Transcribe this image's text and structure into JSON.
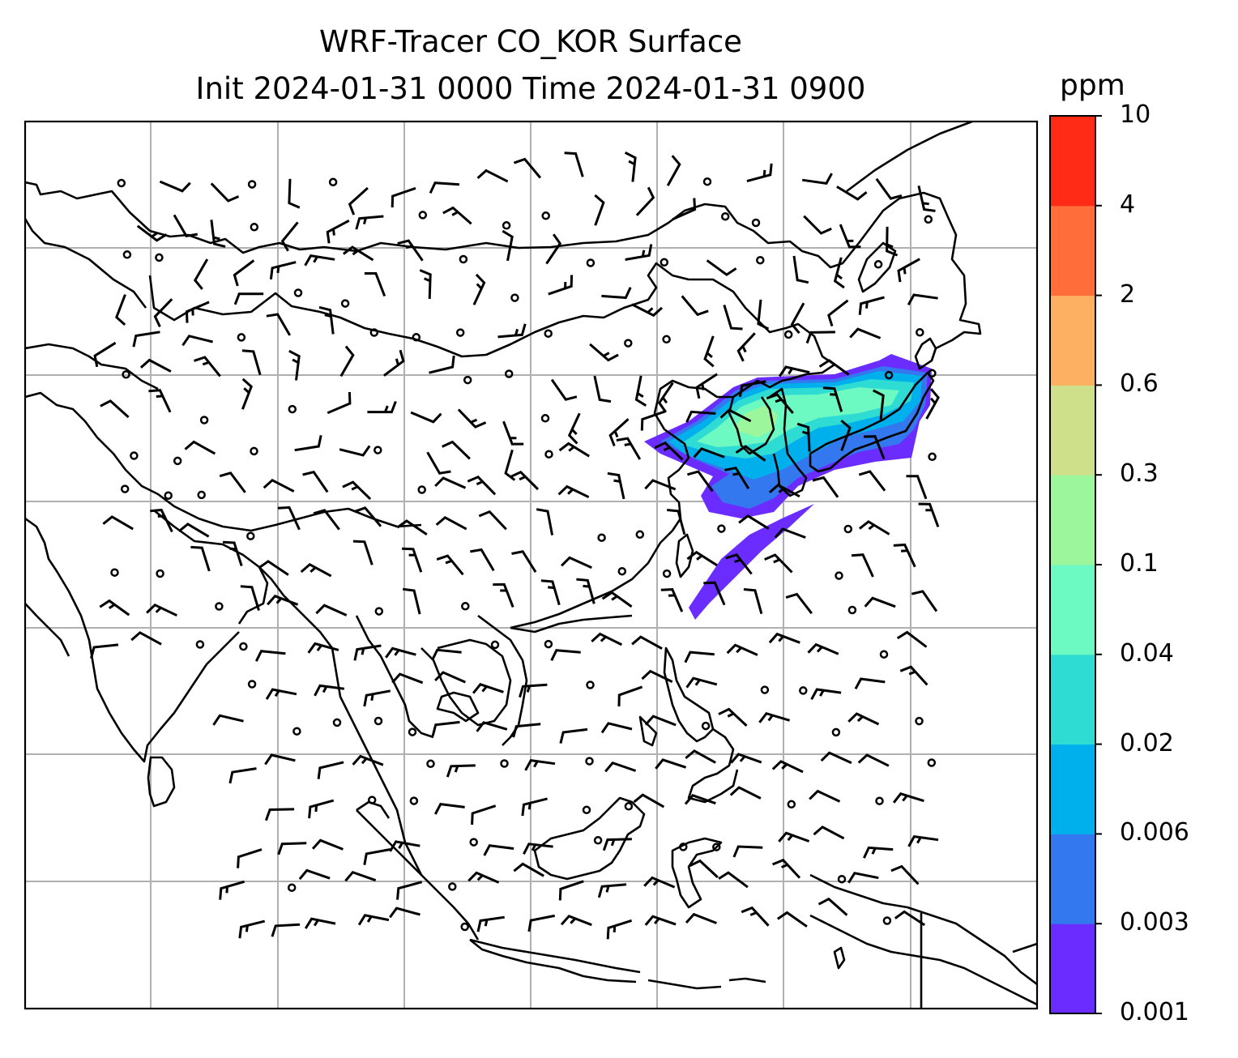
{
  "title": {
    "line1": "WRF-Tracer CO_KOR Surface",
    "line2": "Init 2024-01-31 0000 Time 2024-01-31 0900"
  },
  "colorbar": {
    "unit": "ppm",
    "levels": [
      "0.001",
      "0.003",
      "0.006",
      "0.02",
      "0.04",
      "0.1",
      "0.3",
      "0.6",
      "2",
      "4",
      "10"
    ],
    "colors": [
      "#6a2cff",
      "#3478f0",
      "#00b0ec",
      "#2fdcd4",
      "#6cf9c2",
      "#9cf79c",
      "#cfe08a",
      "#fdb062",
      "#ff6e3a",
      "#ff2b17"
    ]
  },
  "map": {
    "gridlines": true,
    "plume_colors": [
      "#6a2cff",
      "#3478f0",
      "#00b0ec",
      "#2fdcd4",
      "#6cf9c2",
      "#9cf79c"
    ]
  }
}
